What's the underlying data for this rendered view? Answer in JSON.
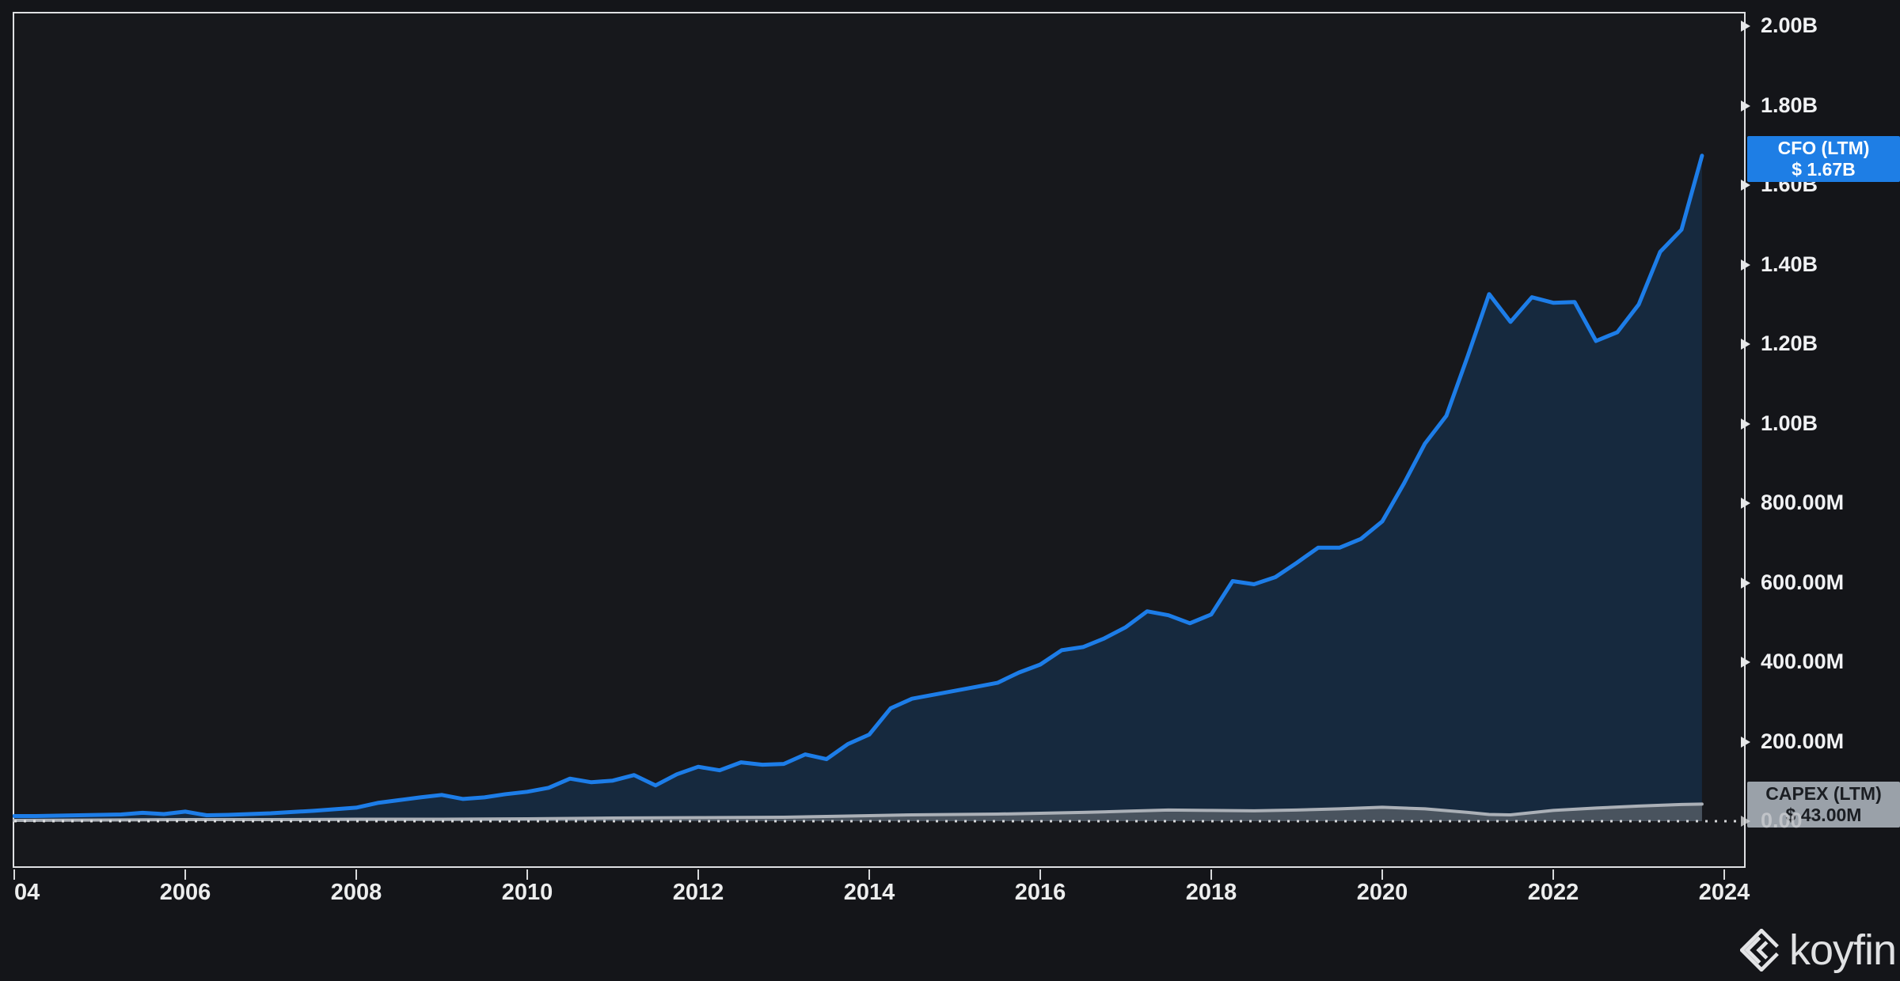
{
  "branding": {
    "logo_text": "koyfin"
  },
  "badges": {
    "cfo": {
      "line1": "CFO (LTM)",
      "line2": "$ 1.67B"
    },
    "capex": {
      "line1": "CAPEX (LTM)",
      "line2": "$ 43.00M"
    }
  },
  "colors": {
    "background": "#141519",
    "frame": "#dfe0e3",
    "cfo_line": "#1d7de8",
    "cfo_fill": "#16293e",
    "capex_line": "#abb0b7",
    "capex_fill": "#49535e",
    "cfo_badge_bg": "#1e7ee5",
    "capex_badge_bg": "#9aa1a9",
    "capex_badge_text": "#1b1e23",
    "zero_dotted_line": "#e8e9eb"
  },
  "y_axis": {
    "zero_label": "0.00",
    "ticks": [
      {
        "text": "2.00B",
        "value_millions": 2000
      },
      {
        "text": "1.80B",
        "value_millions": 1800
      },
      {
        "text": "1.60B",
        "value_millions": 1600
      },
      {
        "text": "1.40B",
        "value_millions": 1400
      },
      {
        "text": "1.20B",
        "value_millions": 1200
      },
      {
        "text": "1.00B",
        "value_millions": 1000
      },
      {
        "text": "800.00M",
        "value_millions": 800
      },
      {
        "text": "600.00M",
        "value_millions": 600
      },
      {
        "text": "400.00M",
        "value_millions": 400
      },
      {
        "text": "200.00M",
        "value_millions": 200
      }
    ]
  },
  "x_axis": {
    "ticks": [
      {
        "text": "04",
        "year": 2004,
        "align": "left"
      },
      {
        "text": "2006",
        "year": 2006,
        "align": "center"
      },
      {
        "text": "2008",
        "year": 2008,
        "align": "center"
      },
      {
        "text": "2010",
        "year": 2010,
        "align": "center"
      },
      {
        "text": "2012",
        "year": 2012,
        "align": "center"
      },
      {
        "text": "2014",
        "year": 2014,
        "align": "center"
      },
      {
        "text": "2016",
        "year": 2016,
        "align": "center"
      },
      {
        "text": "2018",
        "year": 2018,
        "align": "center"
      },
      {
        "text": "2020",
        "year": 2020,
        "align": "center"
      },
      {
        "text": "2022",
        "year": 2022,
        "align": "center"
      },
      {
        "text": "2024",
        "year": 2024,
        "align": "center"
      }
    ]
  },
  "chart_data": {
    "type": "area",
    "title": "",
    "xlabel": "",
    "ylabel": "",
    "x_range_years": [
      2004,
      2024.25
    ],
    "y_range_millions": [
      0,
      2036
    ],
    "grid": "zero-dotted-line-only",
    "legend_position": "right-edge-value-badges",
    "series": [
      {
        "name": "CFO (LTM)",
        "last_value_label": "$ 1.67B",
        "points_year_value_millions": [
          [
            2004.0,
            13
          ],
          [
            2004.25,
            13
          ],
          [
            2004.5,
            14
          ],
          [
            2004.75,
            15
          ],
          [
            2005.0,
            16
          ],
          [
            2005.25,
            17
          ],
          [
            2005.5,
            21
          ],
          [
            2005.75,
            18
          ],
          [
            2006.0,
            24
          ],
          [
            2006.25,
            15
          ],
          [
            2006.5,
            16
          ],
          [
            2006.75,
            18
          ],
          [
            2007.0,
            20
          ],
          [
            2007.25,
            23
          ],
          [
            2007.5,
            26
          ],
          [
            2007.75,
            30
          ],
          [
            2008.0,
            34
          ],
          [
            2008.25,
            46
          ],
          [
            2008.5,
            53
          ],
          [
            2008.75,
            60
          ],
          [
            2009.0,
            66
          ],
          [
            2009.25,
            56
          ],
          [
            2009.5,
            60
          ],
          [
            2009.75,
            68
          ],
          [
            2010.0,
            74
          ],
          [
            2010.25,
            84
          ],
          [
            2010.5,
            107
          ],
          [
            2010.75,
            98
          ],
          [
            2011.0,
            102
          ],
          [
            2011.25,
            116
          ],
          [
            2011.5,
            90
          ],
          [
            2011.75,
            118
          ],
          [
            2012.0,
            137
          ],
          [
            2012.25,
            128
          ],
          [
            2012.5,
            148
          ],
          [
            2012.75,
            142
          ],
          [
            2013.0,
            144
          ],
          [
            2013.25,
            168
          ],
          [
            2013.5,
            156
          ],
          [
            2013.75,
            194
          ],
          [
            2014.0,
            218
          ],
          [
            2014.25,
            284
          ],
          [
            2014.5,
            308
          ],
          [
            2014.75,
            318
          ],
          [
            2015.0,
            328
          ],
          [
            2015.25,
            338
          ],
          [
            2015.5,
            348
          ],
          [
            2015.75,
            374
          ],
          [
            2016.0,
            394
          ],
          [
            2016.25,
            430
          ],
          [
            2016.5,
            438
          ],
          [
            2016.75,
            460
          ],
          [
            2017.0,
            488
          ],
          [
            2017.25,
            528
          ],
          [
            2017.5,
            518
          ],
          [
            2017.75,
            498
          ],
          [
            2018.0,
            520
          ],
          [
            2018.25,
            604
          ],
          [
            2018.5,
            596
          ],
          [
            2018.75,
            614
          ],
          [
            2019.0,
            650
          ],
          [
            2019.25,
            688
          ],
          [
            2019.5,
            688
          ],
          [
            2019.75,
            710
          ],
          [
            2020.0,
            754
          ],
          [
            2020.25,
            848
          ],
          [
            2020.5,
            950
          ],
          [
            2020.75,
            1020
          ],
          [
            2021.0,
            1170
          ],
          [
            2021.25,
            1326
          ],
          [
            2021.5,
            1256
          ],
          [
            2021.75,
            1318
          ],
          [
            2022.0,
            1304
          ],
          [
            2022.25,
            1306
          ],
          [
            2022.5,
            1208
          ],
          [
            2022.75,
            1230
          ],
          [
            2023.0,
            1300
          ],
          [
            2023.25,
            1432
          ],
          [
            2023.5,
            1488
          ],
          [
            2023.74,
            1674
          ]
        ]
      },
      {
        "name": "CAPEX (LTM)",
        "last_value_label": "$ 43.00M",
        "points_year_value_millions": [
          [
            2004.0,
            2
          ],
          [
            2005.0,
            3
          ],
          [
            2006.0,
            4
          ],
          [
            2007.0,
            4
          ],
          [
            2008.0,
            5
          ],
          [
            2009.0,
            5
          ],
          [
            2010.0,
            6
          ],
          [
            2011.0,
            8
          ],
          [
            2012.0,
            9
          ],
          [
            2013.0,
            10
          ],
          [
            2013.5,
            12
          ],
          [
            2014.0,
            14
          ],
          [
            2014.5,
            16
          ],
          [
            2015.0,
            17
          ],
          [
            2015.5,
            18
          ],
          [
            2016.0,
            20
          ],
          [
            2016.5,
            22
          ],
          [
            2017.0,
            25
          ],
          [
            2017.5,
            28
          ],
          [
            2018.0,
            27
          ],
          [
            2018.5,
            26
          ],
          [
            2019.0,
            28
          ],
          [
            2019.5,
            31
          ],
          [
            2020.0,
            35
          ],
          [
            2020.5,
            31
          ],
          [
            2021.0,
            22
          ],
          [
            2021.25,
            17
          ],
          [
            2021.5,
            16
          ],
          [
            2022.0,
            27
          ],
          [
            2022.5,
            33
          ],
          [
            2023.0,
            38
          ],
          [
            2023.5,
            42
          ],
          [
            2023.74,
            43
          ]
        ]
      }
    ]
  }
}
